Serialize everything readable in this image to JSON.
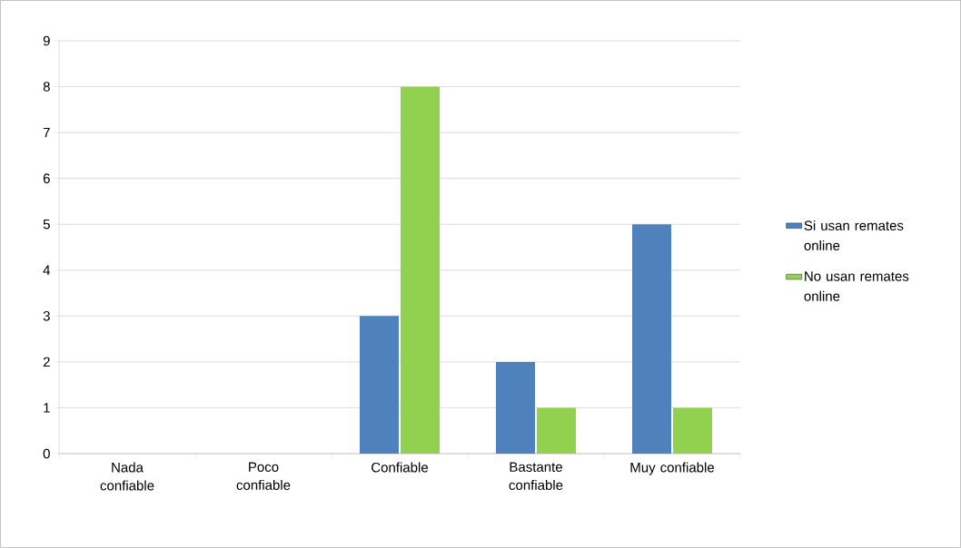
{
  "chart_data": {
    "type": "bar",
    "categories": [
      "Nada confiable",
      "Poco confiable",
      "Confiable",
      "Bastante confiable",
      "Muy confiable"
    ],
    "series": [
      {
        "name": "Si usan remates online",
        "color": "#4f81bd",
        "values": [
          0,
          0,
          3,
          2,
          5
        ]
      },
      {
        "name": "No usan remates online",
        "color": "#92d050",
        "values": [
          0,
          0,
          8,
          1,
          1
        ]
      }
    ],
    "ylim": [
      0,
      9
    ],
    "yticks": [
      0,
      1,
      2,
      3,
      4,
      5,
      6,
      7,
      8,
      9
    ],
    "grid": "y",
    "legend": "right"
  }
}
